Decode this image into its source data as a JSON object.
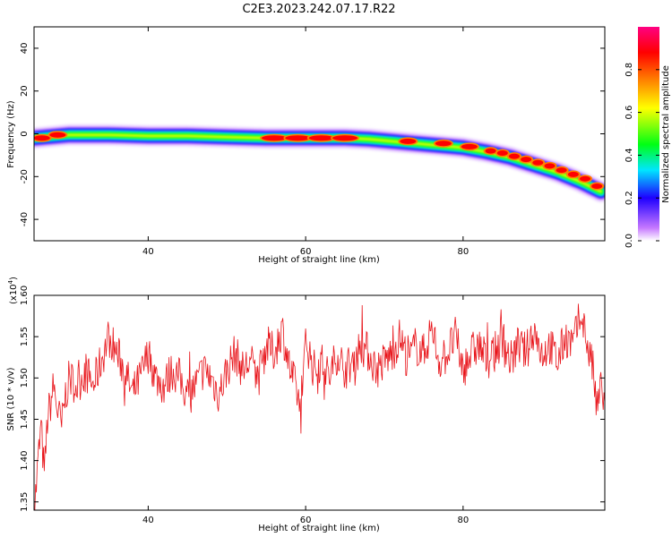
{
  "title": "C2E3.2023.242.07.17.R22",
  "chart_data": [
    {
      "type": "heatmap",
      "xlabel": "Height of straight line (km)",
      "ylabel": "Frequency (Hz)",
      "xlim": [
        25.5,
        98
      ],
      "ylim": [
        -50,
        50
      ],
      "xticks": [
        40,
        60,
        80
      ],
      "yticks": [
        40,
        20,
        0,
        -20,
        -40
      ],
      "grid": false,
      "track": {
        "x": [
          25.5,
          30,
          35,
          40,
          45,
          50,
          55,
          60,
          65,
          68,
          71,
          74,
          77,
          80,
          83,
          86,
          89,
          92,
          95,
          97.5
        ],
        "y": [
          -2,
          -0.5,
          -0.5,
          -1,
          -1,
          -1.5,
          -2,
          -2,
          -2,
          -2.5,
          -3.5,
          -4.5,
          -5.5,
          -6.5,
          -8.5,
          -11,
          -14.5,
          -18,
          -22.5,
          -27
        ]
      },
      "hotspots": [
        {
          "x": 26.5,
          "y": -2
        },
        {
          "x": 28.5,
          "y": -0.5
        },
        {
          "x": 56,
          "y": -2
        },
        {
          "x": 59,
          "y": -2
        },
        {
          "x": 62,
          "y": -2
        },
        {
          "x": 65,
          "y": -2
        },
        {
          "x": 73,
          "y": -3.5
        },
        {
          "x": 77.5,
          "y": -4.5
        },
        {
          "x": 80.8,
          "y": -6
        },
        {
          "x": 83.5,
          "y": -8
        },
        {
          "x": 85,
          "y": -9
        },
        {
          "x": 86.5,
          "y": -10.5
        },
        {
          "x": 88,
          "y": -12
        },
        {
          "x": 89.5,
          "y": -13.5
        },
        {
          "x": 91,
          "y": -15
        },
        {
          "x": 92.5,
          "y": -17
        },
        {
          "x": 94,
          "y": -19
        },
        {
          "x": 95.5,
          "y": -21
        },
        {
          "x": 97,
          "y": -24.5
        }
      ],
      "colorbar": {
        "label": "Normalized spectral amplitude",
        "range": [
          0,
          1
        ],
        "ticks": [
          0.0,
          0.2,
          0.4,
          0.6,
          0.8
        ],
        "tick_labels": [
          "0.0",
          "0.2",
          "0.4",
          "0.6",
          "0.8"
        ],
        "colors": [
          "#ffffff",
          "#c678ff",
          "#1e00ff",
          "#00e6ff",
          "#00ff14",
          "#ffff00",
          "#ff8200",
          "#ff0000",
          "#ff0082"
        ]
      }
    },
    {
      "type": "line",
      "xlabel": "Height of straight line (km)",
      "ylabel": "SNR (10 * v/v)",
      "scale_label": "(x10",
      "scale_exp": "4",
      "scale_close": ")",
      "xlim": [
        25.5,
        98
      ],
      "ylim": [
        1.34,
        1.6
      ],
      "xticks": [
        40,
        60,
        80
      ],
      "yticks": [
        1.35,
        1.4,
        1.45,
        1.5,
        1.55,
        1.6
      ],
      "ytick_labels": [
        "1.35",
        "1.40",
        "1.45",
        "1.50",
        "1.55",
        "1.60"
      ],
      "series": [
        {
          "color": "#e8141a",
          "x": [
            25.5,
            25.8,
            26.1,
            26.4,
            26.8,
            27.2,
            27.6,
            28.0,
            28.5,
            29.0,
            29.5,
            30,
            31,
            32,
            33,
            34,
            35,
            36,
            37,
            38,
            39,
            40,
            41,
            42,
            43,
            44,
            45,
            46,
            47,
            48,
            49,
            50,
            51,
            52,
            53,
            54,
            55,
            56,
            57,
            58,
            59,
            59.5,
            60,
            61,
            62,
            63,
            64,
            65,
            66,
            67,
            68,
            69,
            70,
            71,
            72,
            73,
            74,
            75,
            76,
            77,
            78,
            79,
            80,
            81,
            82,
            83,
            84,
            85,
            86,
            87,
            88,
            89,
            90,
            91,
            92,
            93,
            94,
            95,
            96,
            96.5,
            97,
            97.5,
            98
          ],
          "y": [
            1.34,
            1.37,
            1.41,
            1.44,
            1.38,
            1.45,
            1.47,
            1.49,
            1.46,
            1.44,
            1.48,
            1.5,
            1.49,
            1.51,
            1.49,
            1.52,
            1.55,
            1.53,
            1.51,
            1.48,
            1.5,
            1.53,
            1.5,
            1.49,
            1.51,
            1.5,
            1.48,
            1.49,
            1.51,
            1.5,
            1.48,
            1.51,
            1.53,
            1.51,
            1.52,
            1.5,
            1.54,
            1.53,
            1.56,
            1.51,
            1.48,
            1.45,
            1.55,
            1.51,
            1.52,
            1.5,
            1.53,
            1.51,
            1.52,
            1.54,
            1.53,
            1.51,
            1.52,
            1.53,
            1.55,
            1.52,
            1.54,
            1.53,
            1.56,
            1.52,
            1.53,
            1.55,
            1.51,
            1.53,
            1.54,
            1.52,
            1.53,
            1.55,
            1.52,
            1.54,
            1.53,
            1.56,
            1.53,
            1.54,
            1.52,
            1.55,
            1.54,
            1.58,
            1.53,
            1.51,
            1.46,
            1.49,
            1.47
          ]
        }
      ]
    }
  ]
}
